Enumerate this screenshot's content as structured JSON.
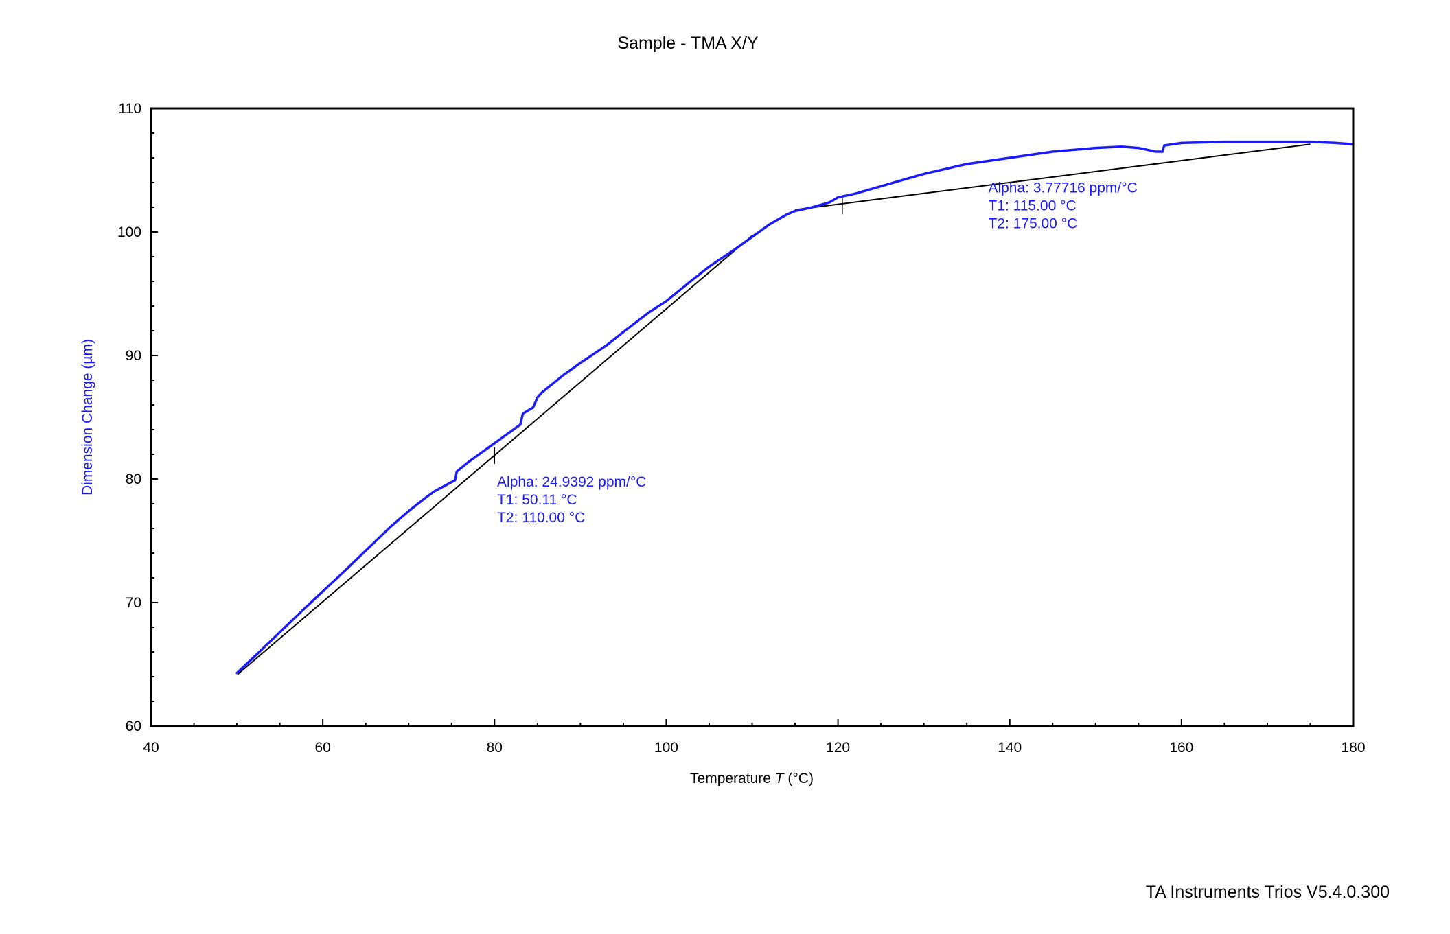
{
  "chart_data": {
    "type": "line",
    "title": "Sample - TMA X/Y",
    "xlabel": {
      "prefix": "Temperature ",
      "symbol": "T",
      "unit": " (°C)"
    },
    "ylabel": "Dimension Change  (µm)",
    "xlim": [
      40,
      180
    ],
    "ylim": [
      60,
      110
    ],
    "x_ticks": [
      40,
      60,
      80,
      100,
      120,
      140,
      160,
      180
    ],
    "y_ticks": [
      60,
      70,
      80,
      90,
      100,
      110
    ],
    "grid": false,
    "legend": "none",
    "colors": {
      "series": "#1a1aff",
      "fit": "#000000",
      "annotation": "#1a1aff",
      "axes": "#000000"
    },
    "series": [
      {
        "x": [
          50,
          52,
          55,
          58,
          60,
          62,
          65,
          68,
          70,
          72,
          73,
          75.4,
          75.6,
          77,
          80,
          83,
          83.3,
          84.5,
          85,
          85.5,
          88,
          90,
          93,
          95,
          98,
          100,
          103,
          105,
          108,
          110,
          112,
          114,
          115,
          117,
          119,
          120,
          122,
          125,
          128,
          130,
          135,
          140,
          145,
          150,
          153,
          155,
          157,
          157.8,
          158,
          160,
          165,
          170,
          175,
          178,
          180
        ],
        "y": [
          64.3,
          65.6,
          67.6,
          69.6,
          70.9,
          72.2,
          74.2,
          76.2,
          77.4,
          78.5,
          79.0,
          79.9,
          80.6,
          81.4,
          82.9,
          84.4,
          85.3,
          85.8,
          86.6,
          87.0,
          88.4,
          89.4,
          90.8,
          91.9,
          93.5,
          94.4,
          96.1,
          97.2,
          98.6,
          99.6,
          100.6,
          101.4,
          101.7,
          102.0,
          102.4,
          102.8,
          103.1,
          103.7,
          104.3,
          104.7,
          105.5,
          106.0,
          106.5,
          106.8,
          106.9,
          106.8,
          106.5,
          106.5,
          107.0,
          107.2,
          107.3,
          107.3,
          107.3,
          107.2,
          107.1
        ]
      }
    ],
    "fits": [
      {
        "x": [
          50.11,
          110.0
        ],
        "y": [
          64.2,
          99.7
        ]
      },
      {
        "x": [
          115.0,
          175.0
        ],
        "y": [
          101.8,
          107.1
        ]
      }
    ],
    "fit_tick_marks": [
      {
        "x": 80,
        "y": 81.9
      },
      {
        "x": 120.5,
        "y": 102.1
      }
    ],
    "annotations": [
      {
        "lines": [
          "Alpha: 24.9392 ppm/°C",
          "T1: 50.11 °C",
          "T2: 110.00 °C"
        ],
        "x": 80.3,
        "y": 79.4
      },
      {
        "lines": [
          "Alpha: 3.77716 ppm/°C",
          "T1: 115.00 °C",
          "T2: 175.00 °C"
        ],
        "x": 137.5,
        "y": 103.2
      }
    ]
  },
  "footer": "TA Instruments Trios V5.4.0.300"
}
